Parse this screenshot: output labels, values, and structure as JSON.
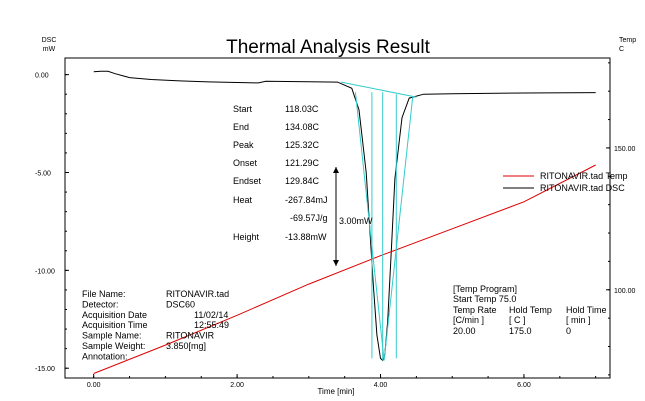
{
  "title": "Thermal Analysis Result",
  "left_axis": {
    "label_line1": "DSC",
    "label_line2": "mW"
  },
  "right_axis": {
    "label_line1": "Temp",
    "label_line2": "C"
  },
  "x_axis": {
    "label": "Time [min]"
  },
  "legend": [
    {
      "text": "RITONAVIR.tad  Temp",
      "color": "#e00000"
    },
    {
      "text": "RITONAVIR.tad  DSC",
      "color": "#000000"
    }
  ],
  "analysis": [
    {
      "label": "Start",
      "value": "118.03C"
    },
    {
      "label": "End",
      "value": "134.08C"
    },
    {
      "label": "Peak",
      "value": "125.32C"
    },
    {
      "label": "Onset",
      "value": "121.29C"
    },
    {
      "label": "Endset",
      "value": "129.84C"
    },
    {
      "label": "Heat",
      "value": "-267.84mJ"
    },
    {
      "label": "",
      "value": "-69.57J/g"
    },
    {
      "label": "Height",
      "value": "-13.88mW"
    }
  ],
  "height_extra": "3.00mW",
  "file_info": [
    {
      "label": "File Name:",
      "value": "RITONAVIR.tad"
    },
    {
      "label": "Detector:",
      "value": "DSC60"
    },
    {
      "label": "Acquisition Date",
      "value": "11/02/14"
    },
    {
      "label": "Acquisition Time",
      "value": "12:55:49"
    },
    {
      "label": "Sample Name:",
      "value": "RITONAVIR"
    },
    {
      "label": "Sample Weight:",
      "value": "3.850[mg]"
    },
    {
      "label": "Annotation:",
      "value": ""
    }
  ],
  "temp_program": {
    "title": "[Temp Program]",
    "start": "Start Temp 75.0",
    "headers": [
      "Temp Rate",
      "Hold Temp",
      "Hold Time"
    ],
    "units": [
      "[C/min ]",
      "[ C ]",
      "[ min ]"
    ],
    "row": [
      "20.00",
      "175.0",
      "0"
    ]
  },
  "chart_data": {
    "type": "line",
    "title": "Thermal Analysis Result",
    "xlabel": "Time [min]",
    "ylabel_left": "DSC mW",
    "ylabel_right": "Temp C",
    "xlim": [
      -0.4,
      7.2
    ],
    "ylim_left": [
      -15.5,
      0.85
    ],
    "ylim_right": [
      68.9,
      181.7
    ],
    "x_ticks": [
      "0.00",
      "2.00",
      "4.00",
      "6.00"
    ],
    "y_ticks_left": [
      "0.00",
      "-5.00",
      "-10.00",
      "-15.00"
    ],
    "y_ticks_right": [
      "150.00",
      "100.00"
    ],
    "series": [
      {
        "name": "RITONAVIR.tad  DSC",
        "axis": "left",
        "color": "#000000",
        "x": [
          0.0,
          0.1,
          0.2,
          0.3,
          0.5,
          0.8,
          1.2,
          1.6,
          2.0,
          2.3,
          2.4,
          3.0,
          3.4,
          3.6,
          3.7,
          3.8,
          3.9,
          3.95,
          4.0,
          4.03,
          4.06,
          4.1,
          4.15,
          4.2,
          4.3,
          4.4,
          4.6,
          5.0,
          6.0,
          7.0
        ],
        "y": [
          0.15,
          0.17,
          0.17,
          0.05,
          -0.15,
          -0.25,
          -0.32,
          -0.37,
          -0.4,
          -0.42,
          -0.34,
          -0.36,
          -0.38,
          -0.7,
          -1.8,
          -5.0,
          -10.8,
          -13.3,
          -14.5,
          -14.6,
          -14.3,
          -12.6,
          -9.0,
          -5.3,
          -2.2,
          -1.2,
          -1.0,
          -0.98,
          -0.94,
          -0.92
        ]
      },
      {
        "name": "RITONAVIR.tad  Temp",
        "axis": "right",
        "color": "#e00000",
        "x": [
          0.0,
          1.0,
          2.0,
          3.0,
          4.0,
          5.0,
          6.0,
          7.0
        ],
        "y": [
          70.5,
          80.5,
          91.0,
          102.0,
          112.0,
          121.5,
          131.0,
          144.0
        ]
      }
    ],
    "baseline_color": "#33cccc",
    "grid": false,
    "legend_position": "right"
  }
}
